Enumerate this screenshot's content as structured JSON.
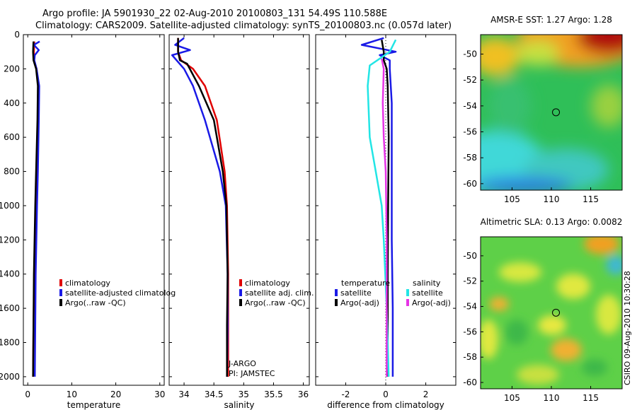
{
  "title_line1": "Argo profile: JA 5901930_22 02-Aug-2010 20100803_131 54.49S 110.588E",
  "title_line2": "Climatology: CARS2009. Satellite-adjusted climatology: synTS_20100803.nc (0.057d later)",
  "credit": "CSIRO 09-Aug-2010 10:30:28",
  "colors": {
    "clim": "#e00000",
    "sat": "#1a1ae6",
    "argo": "#000000",
    "sal_sat": "#22e5e5",
    "sal_argo": "#e633e6"
  },
  "chart_data": [
    {
      "type": "line",
      "name": "temperature-profile",
      "xlabel": "temperature",
      "xlim": [
        -1,
        31
      ],
      "xticks": [
        0,
        10,
        20,
        30
      ],
      "ylim": [
        2050,
        0
      ],
      "yticks": [
        0,
        200,
        400,
        600,
        800,
        1000,
        1200,
        1400,
        1600,
        1800,
        2000
      ],
      "series": [
        {
          "name": "climatology",
          "color_key": "clim",
          "points": [
            [
              1.5,
              40
            ],
            [
              1.4,
              100
            ],
            [
              1.4,
              150
            ],
            [
              2.0,
              200
            ],
            [
              2.4,
              300
            ],
            [
              2.3,
              500
            ],
            [
              2.0,
              800
            ],
            [
              1.8,
              1000
            ],
            [
              1.5,
              1400
            ],
            [
              1.3,
              1700
            ],
            [
              1.2,
              2000
            ]
          ]
        },
        {
          "name": "satellite-adjusted climatology",
          "color_key": "sat",
          "points": [
            [
              2.7,
              40
            ],
            [
              1.4,
              60
            ],
            [
              2.5,
              90
            ],
            [
              1.6,
              120
            ],
            [
              1.5,
              150
            ],
            [
              2.0,
              200
            ],
            [
              2.6,
              300
            ],
            [
              2.5,
              500
            ],
            [
              2.3,
              800
            ],
            [
              2.1,
              1000
            ],
            [
              1.8,
              1400
            ],
            [
              1.7,
              1700
            ],
            [
              1.6,
              2000
            ]
          ]
        },
        {
          "name": "Argo(..raw -QC)",
          "color_key": "argo",
          "points": [
            [
              1.3,
              40
            ],
            [
              1.2,
              100
            ],
            [
              1.3,
              150
            ],
            [
              1.9,
              200
            ],
            [
              2.3,
              300
            ],
            [
              2.2,
              500
            ],
            [
              1.9,
              800
            ],
            [
              1.7,
              1000
            ],
            [
              1.4,
              1400
            ],
            [
              1.3,
              1700
            ],
            [
              1.2,
              2000
            ]
          ]
        }
      ],
      "legend": [
        "climatology",
        "satellite-adjusted climatolog",
        "Argo(..raw -QC)"
      ]
    },
    {
      "type": "line",
      "name": "salinity-profile",
      "xlabel": "salinity",
      "xlim": [
        33.75,
        36.1
      ],
      "xticks": [
        34,
        34.5,
        35,
        35.5,
        36
      ],
      "xticklabels": [
        "34",
        "34.5",
        "35",
        "35.5",
        "36"
      ],
      "ylim": [
        2050,
        0
      ],
      "series": [
        {
          "name": "climatology",
          "color_key": "clim",
          "points": [
            [
              33.9,
              20
            ],
            [
              33.9,
              100
            ],
            [
              33.95,
              150
            ],
            [
              34.15,
              200
            ],
            [
              34.35,
              300
            ],
            [
              34.55,
              500
            ],
            [
              34.68,
              800
            ],
            [
              34.72,
              1000
            ],
            [
              34.74,
              1400
            ],
            [
              34.74,
              1700
            ],
            [
              34.74,
              2000
            ]
          ]
        },
        {
          "name": "satellite adj. clim.",
          "color_key": "sat",
          "points": [
            [
              34.0,
              20
            ],
            [
              33.85,
              60
            ],
            [
              34.1,
              90
            ],
            [
              33.8,
              120
            ],
            [
              33.9,
              160
            ],
            [
              34.0,
              200
            ],
            [
              34.15,
              300
            ],
            [
              34.35,
              500
            ],
            [
              34.6,
              800
            ],
            [
              34.7,
              1000
            ],
            [
              34.73,
              1400
            ],
            [
              34.73,
              1700
            ],
            [
              34.72,
              2000
            ]
          ]
        },
        {
          "name": "Argo(..raw -QC)",
          "color_key": "argo",
          "points": [
            [
              33.9,
              20
            ],
            [
              33.9,
              100
            ],
            [
              33.93,
              150
            ],
            [
              34.05,
              170
            ],
            [
              34.25,
              300
            ],
            [
              34.5,
              500
            ],
            [
              34.65,
              800
            ],
            [
              34.71,
              1000
            ],
            [
              34.73,
              1400
            ],
            [
              34.72,
              1700
            ],
            [
              34.72,
              2000
            ]
          ]
        }
      ],
      "legend": [
        "climatology",
        "satellite adj. clim.",
        "Argo(..raw -QC)"
      ],
      "annotations": [
        "J-ARGO",
        "PI: JAMSTEC"
      ]
    },
    {
      "type": "line",
      "name": "difference-profile",
      "xlabel": "difference from climatology",
      "xlim": [
        -3.5,
        3.5
      ],
      "xticks": [
        -2,
        0,
        2
      ],
      "ylim": [
        2050,
        0
      ],
      "series": [
        {
          "name": "temperature satellite",
          "color_key": "sat",
          "points": [
            [
              -0.1,
              20
            ],
            [
              -1.2,
              60
            ],
            [
              0.5,
              100
            ],
            [
              -0.3,
              120
            ],
            [
              0.2,
              150
            ],
            [
              0.2,
              200
            ],
            [
              0.3,
              400
            ],
            [
              0.3,
              800
            ],
            [
              0.3,
              1200
            ],
            [
              0.35,
              1600
            ],
            [
              0.35,
              2000
            ]
          ]
        },
        {
          "name": "temperature Argo(-adj)",
          "color_key": "argo",
          "points": [
            [
              -0.2,
              30
            ],
            [
              -0.1,
              100
            ],
            [
              -0.1,
              150
            ],
            [
              0.05,
              200
            ],
            [
              0.1,
              300
            ],
            [
              0.15,
              600
            ],
            [
              0.12,
              1000
            ],
            [
              0.1,
              1400
            ],
            [
              0.1,
              2000
            ]
          ]
        },
        {
          "name": "salinity satellite",
          "color_key": "sal_sat",
          "points": [
            [
              0.5,
              30
            ],
            [
              0.2,
              100
            ],
            [
              -0.8,
              180
            ],
            [
              -0.9,
              300
            ],
            [
              -0.8,
              600
            ],
            [
              -0.5,
              800
            ],
            [
              -0.2,
              1000
            ],
            [
              -0.1,
              1200
            ],
            [
              0.05,
              1600
            ],
            [
              0.15,
              2000
            ]
          ]
        },
        {
          "name": "salinity Argo(-adj)",
          "color_key": "sal_argo",
          "points": [
            [
              -0.2,
              140
            ],
            [
              -0.1,
              200
            ],
            [
              -0.15,
              400
            ],
            [
              -0.1,
              600
            ],
            [
              0.0,
              800
            ],
            [
              0.05,
              1200
            ],
            [
              0.05,
              2000
            ]
          ]
        }
      ],
      "legend_titles": [
        "temperature",
        "salinity"
      ],
      "legend_temperature": [
        "satellite",
        "Argo(-adj)"
      ],
      "legend_salinity": [
        "satellite",
        "Argo(-adj)"
      ]
    },
    {
      "type": "heatmap",
      "name": "sst-map",
      "title": "AMSR-E SST: 1.27 Argo: 1.28",
      "xlim": [
        101,
        119
      ],
      "ylim": [
        -60.5,
        -48.5
      ],
      "xticks": [
        105,
        110,
        115
      ],
      "yticks": [
        -50,
        -52,
        -54,
        -56,
        -58,
        -60
      ],
      "marker": [
        110.588,
        -54.49
      ]
    },
    {
      "type": "heatmap",
      "name": "sla-map",
      "title": "Altimetric SLA: 0.13 Argo: 0.0082",
      "xlim": [
        101,
        119
      ],
      "ylim": [
        -60.5,
        -48.5
      ],
      "xticks": [
        105,
        110,
        115
      ],
      "yticks": [
        -50,
        -52,
        -54,
        -56,
        -58,
        -60
      ],
      "marker": [
        110.588,
        -54.49
      ]
    }
  ]
}
